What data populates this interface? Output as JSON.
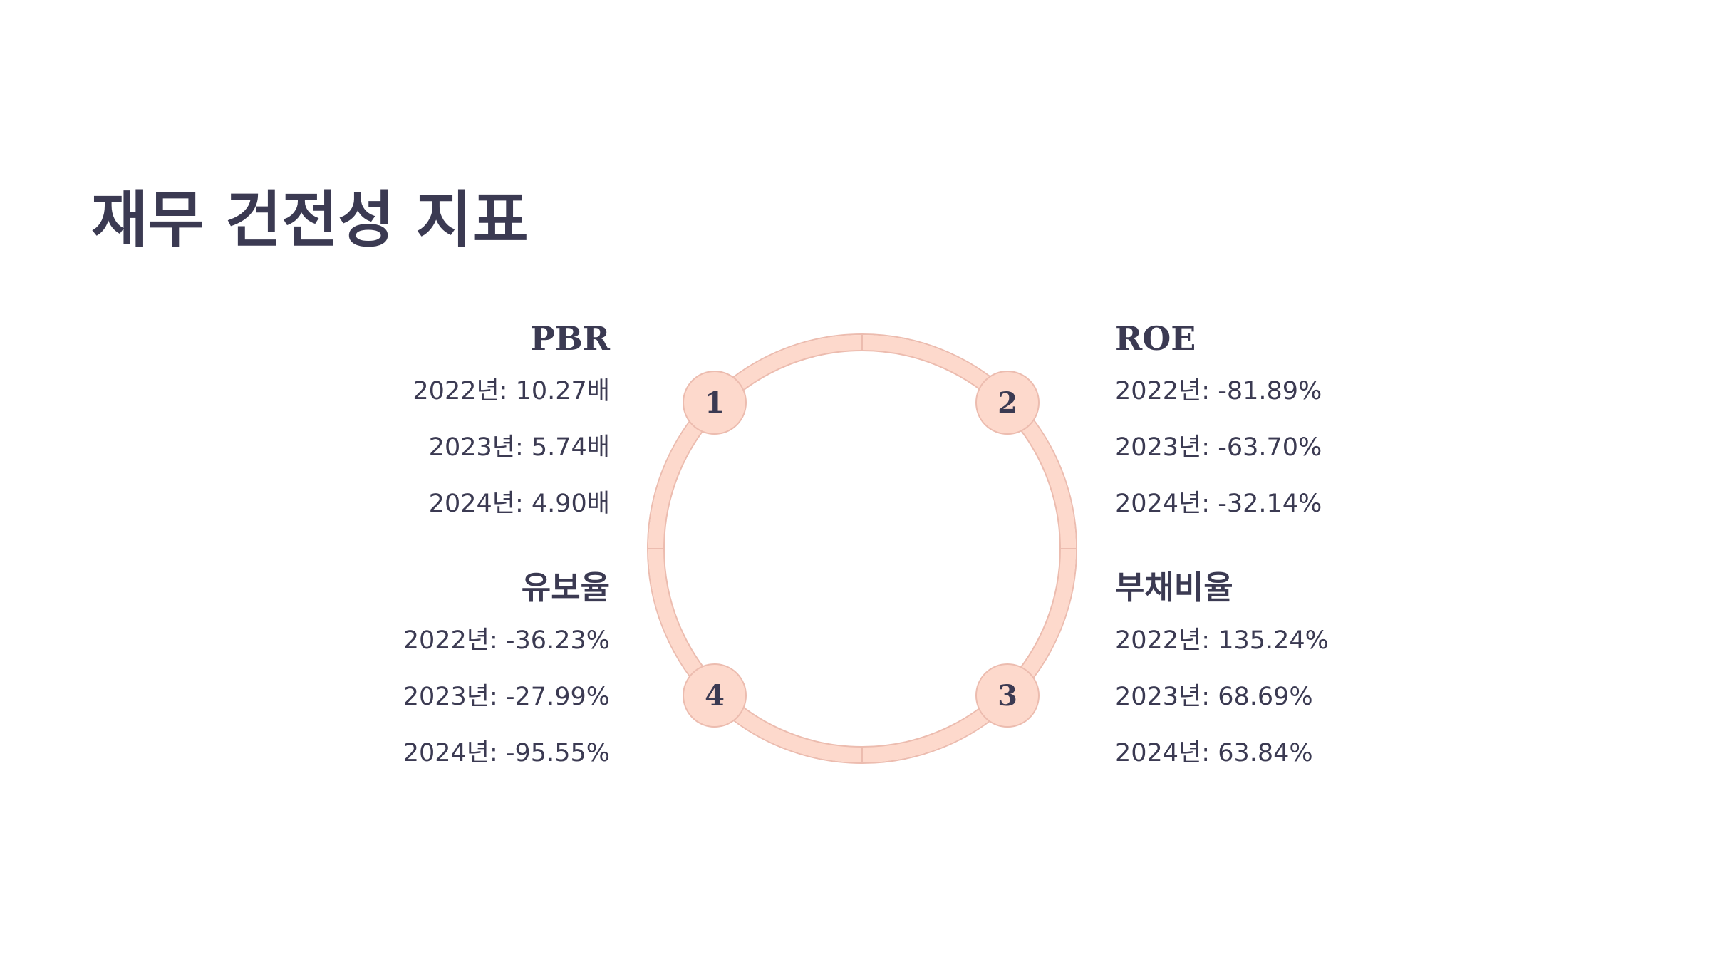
{
  "title": "재무 건전성 지표",
  "steps": [
    {
      "number": "1",
      "heading": "PBR",
      "lines": [
        "2022년: 10.27배",
        "2023년: 5.74배",
        "2024년: 4.90배"
      ]
    },
    {
      "number": "2",
      "heading": "ROE",
      "lines": [
        "2022년: -81.89%",
        "2023년: -63.70%",
        "2024년: -32.14%"
      ]
    },
    {
      "number": "3",
      "heading": "부채비율",
      "lines": [
        "2022년: 135.24%",
        "2023년: 68.69%",
        "2024년: 63.84%"
      ]
    },
    {
      "number": "4",
      "heading": "유보율",
      "lines": [
        "2022년: -36.23%",
        "2023년: -27.99%",
        "2024년: -95.55%"
      ]
    }
  ],
  "colors": {
    "text": "#3b3a52",
    "ring_fill": "#fdd9cc",
    "ring_stroke": "#ecbcaf"
  }
}
